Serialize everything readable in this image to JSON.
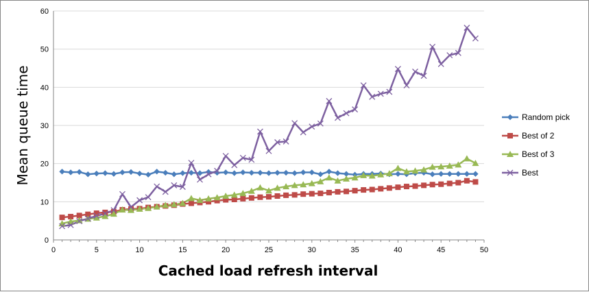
{
  "chart_data": {
    "type": "line",
    "title": "",
    "xlabel": "Cached load refresh interval",
    "ylabel": "Mean queue time",
    "xlim": [
      0,
      50
    ],
    "ylim": [
      0,
      60
    ],
    "xticks": [
      0,
      5,
      10,
      15,
      20,
      25,
      30,
      35,
      40,
      45,
      50
    ],
    "yticks": [
      0,
      10,
      20,
      30,
      40,
      50,
      60
    ],
    "grid": "horizontal",
    "legend": "right",
    "x": [
      1,
      2,
      3,
      4,
      5,
      6,
      7,
      8,
      9,
      10,
      11,
      12,
      13,
      14,
      15,
      16,
      17,
      18,
      19,
      20,
      21,
      22,
      23,
      24,
      25,
      26,
      27,
      28,
      29,
      30,
      31,
      32,
      33,
      34,
      35,
      36,
      37,
      38,
      39,
      40,
      41,
      42,
      43,
      44,
      45,
      46,
      47,
      48,
      49
    ],
    "series": [
      {
        "name": "Random pick",
        "color": "#4A7EBB",
        "marker": "diamond",
        "values": [
          17.9,
          17.7,
          17.8,
          17.2,
          17.4,
          17.5,
          17.3,
          17.7,
          17.8,
          17.4,
          17.1,
          17.9,
          17.6,
          17.2,
          17.5,
          17.6,
          17.5,
          17.8,
          17.6,
          17.7,
          17.5,
          17.7,
          17.6,
          17.6,
          17.5,
          17.6,
          17.6,
          17.5,
          17.7,
          17.7,
          17.2,
          17.9,
          17.5,
          17.3,
          17.1,
          17.3,
          17.3,
          17.4,
          17.2,
          17.3,
          17.2,
          17.5,
          17.6,
          17.2,
          17.3,
          17.3,
          17.3,
          17.3,
          17.3
        ]
      },
      {
        "name": "Best of 2",
        "color": "#BE4B48",
        "marker": "square",
        "values": [
          5.9,
          6.1,
          6.4,
          6.7,
          7.0,
          7.2,
          7.4,
          7.9,
          8.1,
          8.2,
          8.5,
          8.7,
          8.9,
          9.1,
          9.4,
          9.6,
          9.8,
          10.0,
          10.3,
          10.5,
          10.6,
          10.8,
          11.0,
          11.2,
          11.3,
          11.5,
          11.7,
          11.8,
          12.0,
          12.1,
          12.2,
          12.4,
          12.6,
          12.7,
          12.9,
          13.1,
          13.2,
          13.4,
          13.6,
          13.8,
          14.0,
          14.1,
          14.3,
          14.5,
          14.6,
          14.8,
          15.0,
          15.5,
          15.2
        ]
      },
      {
        "name": "Best of 3",
        "color": "#98B954",
        "marker": "triangle",
        "values": [
          4.3,
          4.8,
          5.1,
          5.5,
          5.8,
          6.2,
          6.8,
          7.9,
          7.8,
          8.1,
          8.3,
          8.7,
          9.1,
          9.3,
          9.6,
          10.9,
          10.4,
          10.8,
          11.1,
          11.5,
          11.8,
          12.2,
          12.8,
          13.7,
          12.9,
          13.6,
          14.0,
          14.3,
          14.5,
          14.8,
          15.3,
          16.3,
          15.5,
          16.0,
          16.3,
          16.9,
          16.8,
          17.1,
          17.4,
          18.8,
          17.9,
          18.1,
          18.4,
          19.1,
          19.2,
          19.4,
          19.7,
          21.3,
          20.1
        ]
      },
      {
        "name": "Best",
        "color": "#7D60A0",
        "marker": "x",
        "values": [
          3.6,
          3.9,
          4.9,
          5.6,
          6.3,
          6.9,
          7.8,
          12.0,
          8.6,
          10.4,
          11.2,
          14.0,
          12.6,
          14.3,
          13.9,
          20.2,
          15.8,
          17.2,
          18.1,
          22.0,
          19.6,
          21.5,
          21.0,
          28.4,
          23.3,
          25.6,
          25.8,
          30.6,
          28.2,
          29.7,
          30.5,
          36.4,
          32.0,
          33.2,
          34.2,
          40.5,
          37.5,
          38.3,
          38.8,
          44.8,
          40.5,
          44.1,
          43.0,
          50.6,
          46.1,
          48.4,
          49.0,
          55.6,
          52.8
        ]
      }
    ]
  }
}
